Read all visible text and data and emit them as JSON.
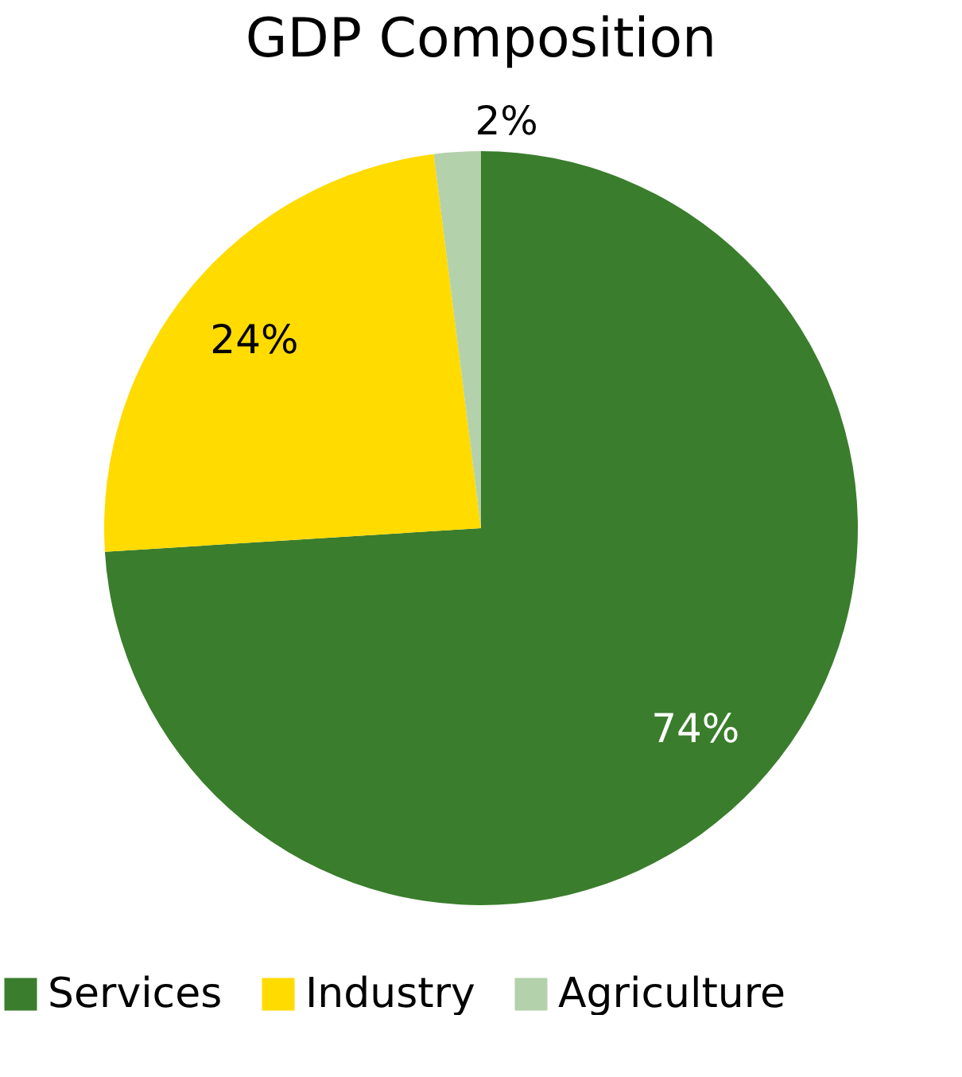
{
  "chart_data": {
    "type": "pie",
    "title": "GDP Composition",
    "categories": [
      "Services",
      "Industry",
      "Agriculture"
    ],
    "values": [
      74,
      24,
      2
    ],
    "colors": [
      "#3a7d2c",
      "#ffdb00",
      "#b3d1ab"
    ],
    "value_labels": [
      "74%",
      "24%",
      "2%"
    ],
    "legend": "bottom"
  }
}
